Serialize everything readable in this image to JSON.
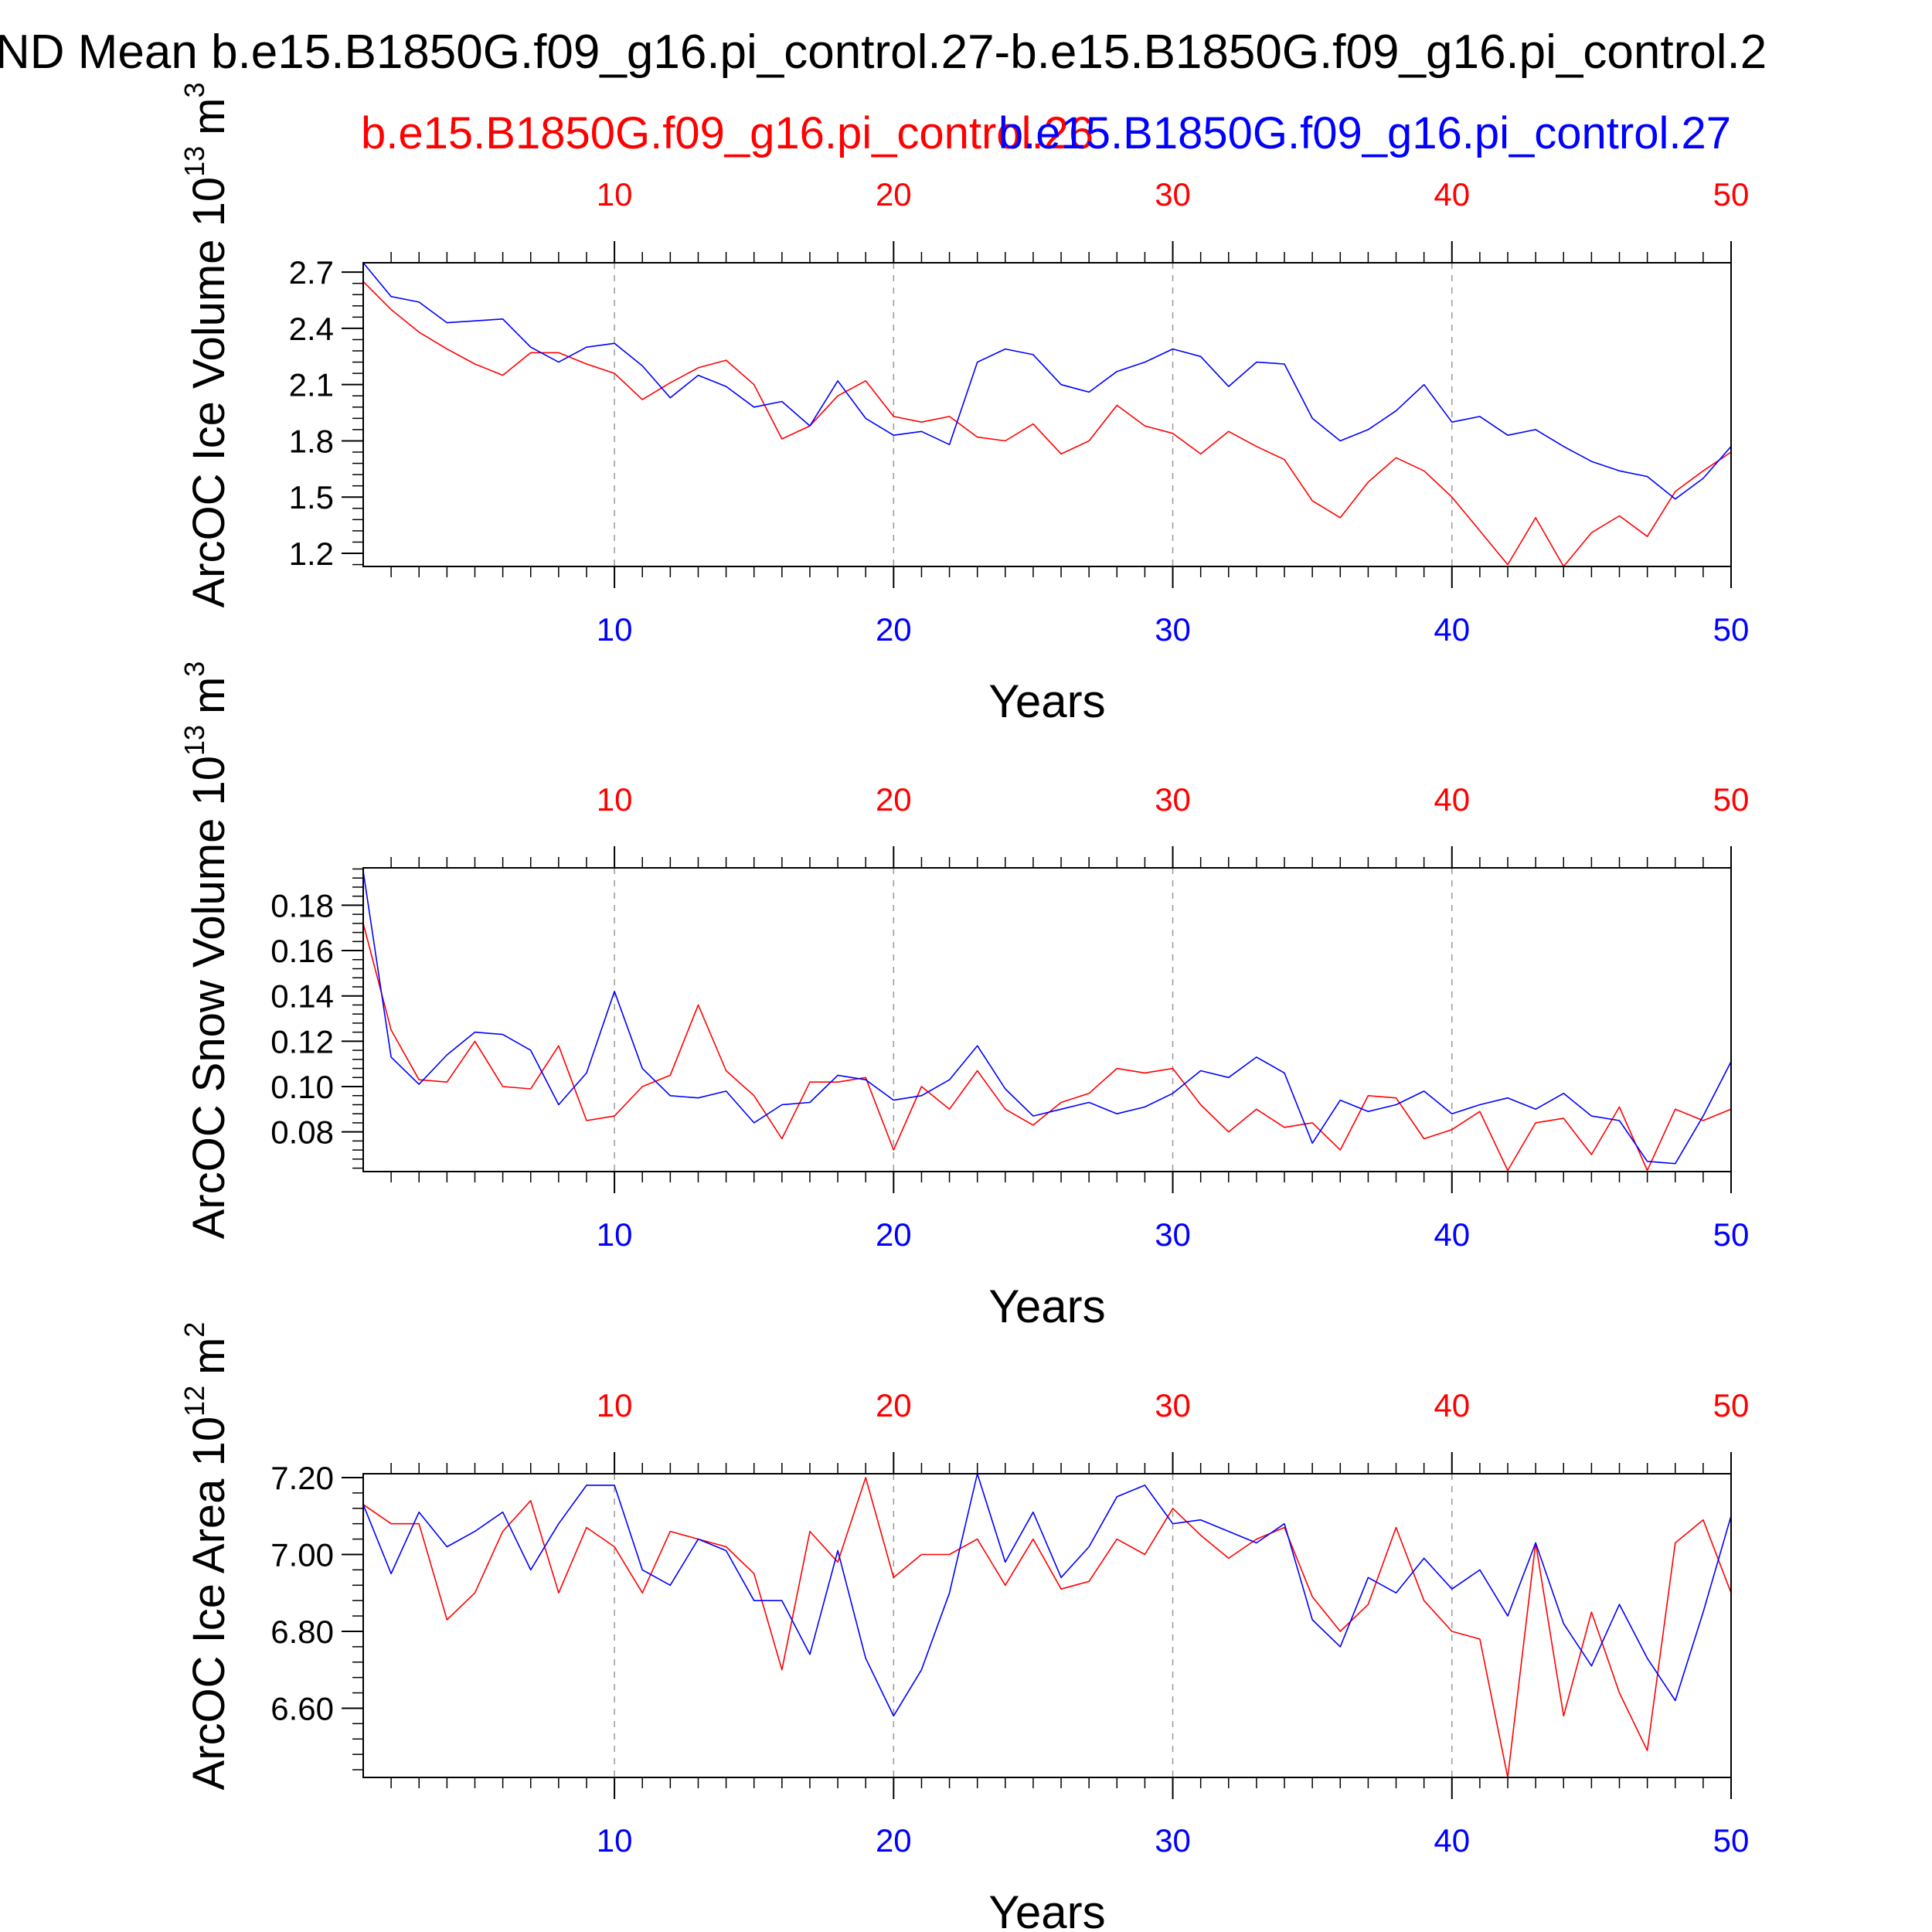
{
  "title": "ND Mean b.e15.B1850G.f09_g16.pi_control.27-b.e15.B1850G.f09_g16.pi_control.2",
  "subtitle_red": "b.e15.B1850G.f09_g16.pi_control.26",
  "subtitle_blue": "b.e15.B1850G.f09_g16.pi_control.27",
  "colors": {
    "series_a": "#ff0000",
    "series_b": "#0000ff",
    "axis": "#000000",
    "grid": "#999999"
  },
  "chart_data": [
    {
      "type": "line",
      "ylabel": "ArcOC Ice Volume 10",
      "ylabel_exp": "13",
      "ylabel_unit": "m",
      "ylabel_unit_exp": "3",
      "xlabel": "Years",
      "xlim": [
        1,
        50
      ],
      "ylim": [
        1.13,
        2.75
      ],
      "yticks": [
        1.2,
        1.5,
        1.8,
        2.1,
        2.4,
        2.7
      ],
      "ytick_labels": [
        "1.2",
        "1.5",
        "1.8",
        "2.1",
        "2.4",
        "2.7"
      ],
      "xticks": [
        10,
        20,
        30,
        40,
        50
      ],
      "xtick_labels": [
        "10",
        "20",
        "30",
        "40",
        "50"
      ],
      "grid": "vertical dashed at x ticks",
      "series": [
        {
          "values": [
            2.65,
            2.5,
            2.38,
            2.29,
            2.21,
            2.15,
            2.27,
            2.27,
            2.21,
            2.16,
            2.02,
            2.11,
            2.19,
            2.23,
            2.1,
            1.81,
            1.88,
            2.04,
            2.12,
            1.93,
            1.9,
            1.93,
            1.82,
            1.8,
            1.89,
            1.73,
            1.8,
            1.99,
            1.88,
            1.84,
            1.73,
            1.85,
            1.77,
            1.7,
            1.48,
            1.39,
            1.58,
            1.71,
            1.64,
            1.5,
            1.32,
            1.14,
            1.39,
            1.13,
            1.31,
            1.4,
            1.29,
            1.53,
            1.64,
            1.74
          ]
        },
        {
          "values": [
            2.75,
            2.57,
            2.54,
            2.43,
            2.44,
            2.45,
            2.3,
            2.22,
            2.3,
            2.32,
            2.2,
            2.03,
            2.15,
            2.09,
            1.98,
            2.01,
            1.88,
            2.12,
            1.92,
            1.83,
            1.85,
            1.78,
            2.22,
            2.29,
            2.26,
            2.1,
            2.06,
            2.17,
            2.22,
            2.29,
            2.25,
            2.09,
            2.22,
            2.21,
            1.92,
            1.8,
            1.86,
            1.96,
            2.1,
            1.9,
            1.93,
            1.83,
            1.86,
            1.77,
            1.69,
            1.64,
            1.61,
            1.49,
            1.6,
            1.77
          ]
        }
      ]
    },
    {
      "type": "line",
      "ylabel": "ArcOC Snow Volume 10",
      "ylabel_exp": "13",
      "ylabel_unit": "m",
      "ylabel_unit_exp": "3",
      "xlabel": "Years",
      "xlim": [
        1,
        50
      ],
      "ylim": [
        0.0625,
        0.1965
      ],
      "yticks": [
        0.08,
        0.1,
        0.12,
        0.14,
        0.16,
        0.18
      ],
      "ytick_labels": [
        "0.08",
        "0.10",
        "0.12",
        "0.14",
        "0.16",
        "0.18"
      ],
      "xticks": [
        10,
        20,
        30,
        40,
        50
      ],
      "xtick_labels": [
        "10",
        "20",
        "30",
        "40",
        "50"
      ],
      "grid": "vertical dashed at x ticks",
      "series": [
        {
          "values": [
            0.172,
            0.125,
            0.103,
            0.102,
            0.12,
            0.1,
            0.099,
            0.118,
            0.085,
            0.087,
            0.1,
            0.105,
            0.136,
            0.107,
            0.096,
            0.077,
            0.102,
            0.102,
            0.104,
            0.072,
            0.1,
            0.09,
            0.107,
            0.09,
            0.083,
            0.093,
            0.097,
            0.108,
            0.106,
            0.108,
            0.092,
            0.08,
            0.09,
            0.082,
            0.084,
            0.072,
            0.096,
            0.095,
            0.077,
            0.081,
            0.089,
            0.063,
            0.084,
            0.086,
            0.07,
            0.091,
            0.063,
            0.09,
            0.085,
            0.09
          ]
        },
        {
          "values": [
            0.195,
            0.113,
            0.101,
            0.114,
            0.124,
            0.123,
            0.116,
            0.092,
            0.106,
            0.142,
            0.108,
            0.096,
            0.095,
            0.098,
            0.084,
            0.092,
            0.093,
            0.105,
            0.103,
            0.094,
            0.096,
            0.103,
            0.118,
            0.099,
            0.087,
            0.09,
            0.093,
            0.088,
            0.091,
            0.097,
            0.107,
            0.104,
            0.113,
            0.106,
            0.075,
            0.094,
            0.089,
            0.092,
            0.098,
            0.088,
            0.092,
            0.095,
            0.09,
            0.097,
            0.087,
            0.085,
            0.067,
            0.066,
            0.087,
            0.111
          ]
        }
      ]
    },
    {
      "type": "line",
      "ylabel": "ArcOC Ice Area 10",
      "ylabel_exp": "12",
      "ylabel_unit": "m",
      "ylabel_unit_exp": "2",
      "xlabel": "Years",
      "xlim": [
        1,
        50
      ],
      "ylim": [
        6.42,
        7.21
      ],
      "yticks": [
        6.6,
        6.8,
        7.0,
        7.2
      ],
      "ytick_labels": [
        "6.60",
        "6.80",
        "7.00",
        "7.20"
      ],
      "xticks": [
        10,
        20,
        30,
        40,
        50
      ],
      "xtick_labels": [
        "10",
        "20",
        "30",
        "40",
        "50"
      ],
      "grid": "vertical dashed at x ticks",
      "series": [
        {
          "values": [
            7.13,
            7.08,
            7.08,
            6.83,
            6.9,
            7.06,
            7.14,
            6.9,
            7.07,
            7.02,
            6.9,
            7.06,
            7.04,
            7.02,
            6.95,
            6.7,
            7.06,
            6.98,
            7.2,
            6.94,
            7.0,
            7.0,
            7.04,
            6.92,
            7.04,
            6.91,
            6.93,
            7.04,
            7.0,
            7.12,
            7.05,
            6.99,
            7.04,
            7.07,
            6.89,
            6.8,
            6.87,
            7.07,
            6.88,
            6.8,
            6.78,
            6.42,
            7.03,
            6.58,
            6.85,
            6.64,
            6.49,
            7.03,
            7.09,
            6.9
          ]
        },
        {
          "values": [
            7.13,
            6.95,
            7.11,
            7.02,
            7.06,
            7.11,
            6.96,
            7.08,
            7.18,
            7.18,
            6.96,
            6.92,
            7.04,
            7.01,
            6.88,
            6.88,
            6.74,
            7.01,
            6.73,
            6.58,
            6.7,
            6.9,
            7.21,
            6.98,
            7.11,
            6.94,
            7.02,
            7.15,
            7.18,
            7.08,
            7.09,
            7.06,
            7.03,
            7.08,
            6.83,
            6.76,
            6.94,
            6.9,
            6.99,
            6.91,
            6.96,
            6.84,
            7.03,
            6.82,
            6.71,
            6.87,
            6.73,
            6.62,
            6.85,
            7.1
          ]
        }
      ]
    }
  ]
}
